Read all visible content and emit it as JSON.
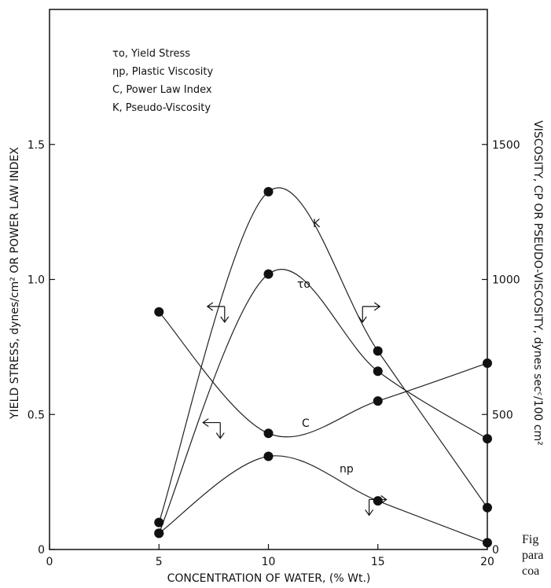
{
  "chart_data": {
    "type": "line",
    "xlabel": "CONCENTRATION OF WATER, (% Wt.)",
    "ylabel_left": "YIELD STRESS, dynes/cm² OR POWER LAW INDEX",
    "ylabel_right": "VISCOSITY, CP OR PSEUDO-VISCOSITY, dynes secᶜ/100 cm²",
    "xlim": [
      0,
      20
    ],
    "ylim_left": [
      0,
      2.0
    ],
    "ylim_right": [
      0,
      2000
    ],
    "x_ticks": [
      "0",
      "5",
      "10",
      "15",
      "20"
    ],
    "y_left_ticks": [
      "0",
      "0.5",
      "1.0",
      "1.5"
    ],
    "y_right_ticks": [
      "0",
      "500",
      "1000",
      "1500"
    ],
    "legend": [
      "τo, Yield Stress",
      "ηp, Plastic Viscosity",
      "C, Power Law Index",
      "K, Pseudo-Viscosity"
    ],
    "series": [
      {
        "name": "K",
        "axis": "right",
        "x": [
          5,
          10,
          15,
          20
        ],
        "y": [
          100,
          1325,
          735,
          155
        ]
      },
      {
        "name": "τo",
        "axis": "left",
        "x": [
          5,
          10,
          15,
          20
        ],
        "y": [
          0.06,
          1.02,
          0.66,
          0.41
        ]
      },
      {
        "name": "C",
        "axis": "left",
        "x": [
          5,
          10,
          15,
          20
        ],
        "y": [
          0.88,
          0.43,
          0.55,
          0.69
        ]
      },
      {
        "name": "np",
        "axis": "right",
        "x": [
          5,
          10,
          15,
          20
        ],
        "y": [
          60,
          345,
          180,
          25
        ]
      }
    ],
    "grid": false,
    "legend_position": "top-left"
  },
  "caption_lines": [
    "Fig",
    "para",
    "coa"
  ]
}
